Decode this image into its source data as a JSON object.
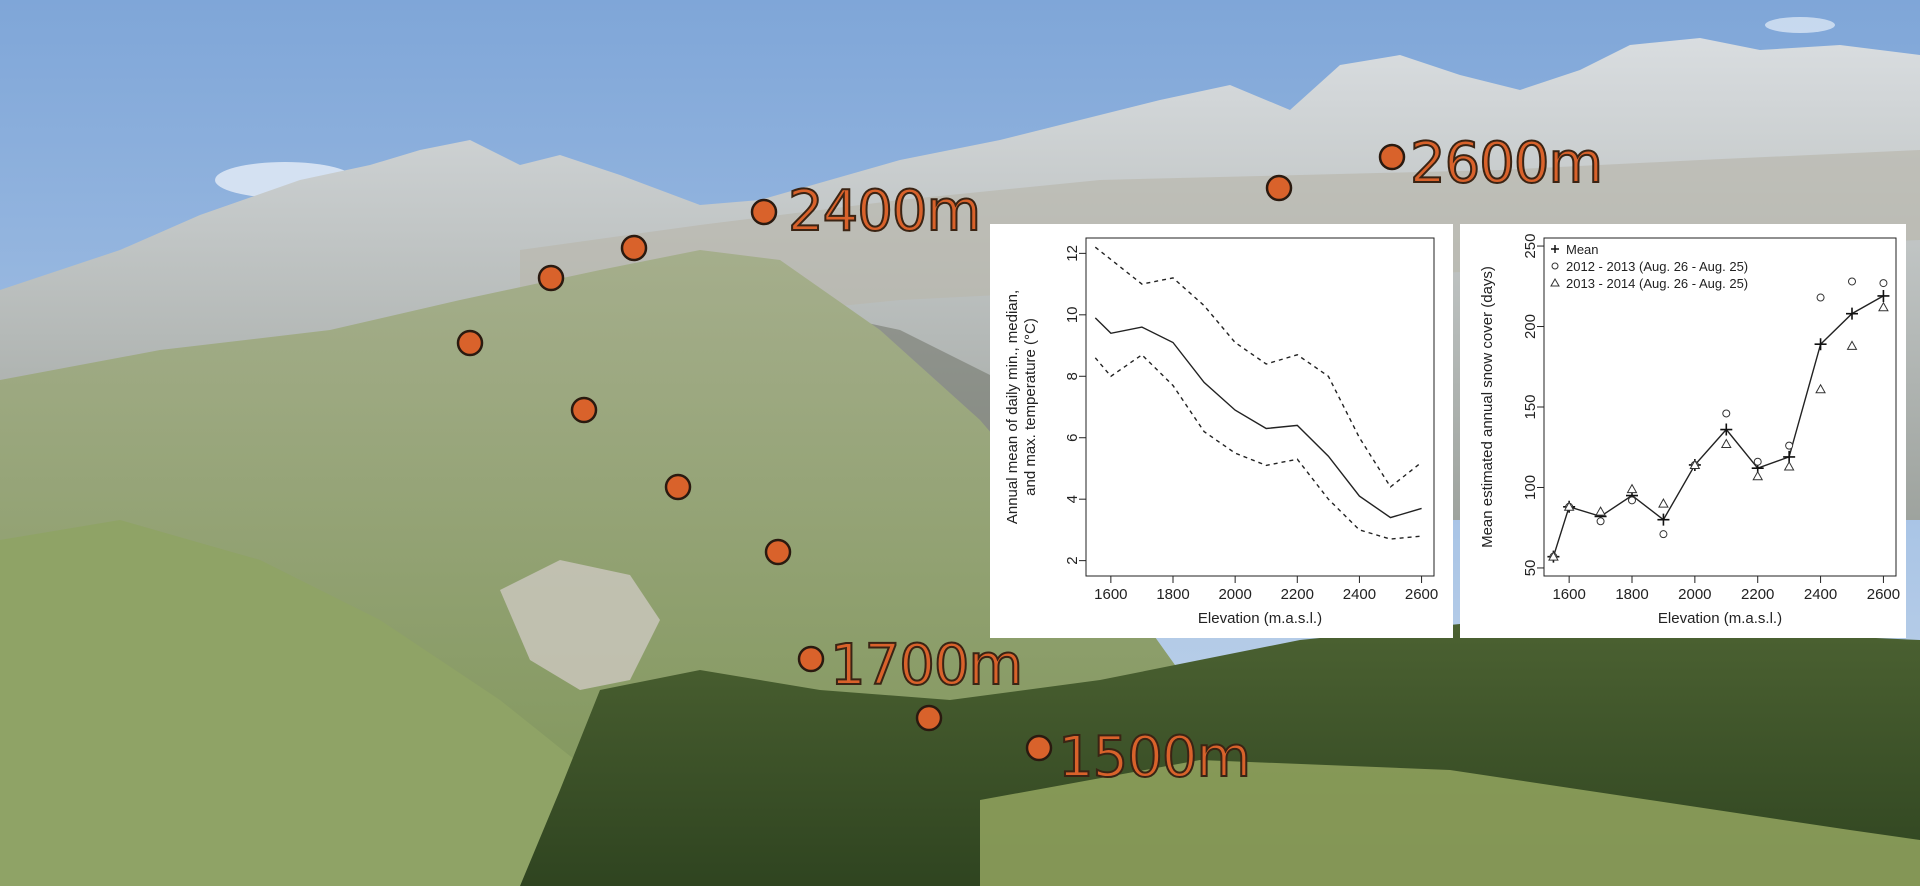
{
  "photo": {
    "description_free": true,
    "sky_color": "#a9c4e6",
    "marker_color": "#d9622b",
    "site_markers_count": 13,
    "labels": [
      "2400m",
      "2600m",
      "1700m",
      "1500m"
    ]
  },
  "chart_data": [
    {
      "type": "line",
      "title": "",
      "xlabel": "Elevation (m.a.s.l.)",
      "ylabel": "Annual mean of daily min., median, and max. temperature (°C)",
      "ylabel_lines": [
        "Annual mean of daily min., median,",
        "and max. temperature (°C)"
      ],
      "xlim": [
        1520,
        2640
      ],
      "ylim": [
        1.5,
        12.5
      ],
      "xticks": [
        1600,
        1800,
        2000,
        2200,
        2400,
        2600
      ],
      "yticks": [
        2,
        4,
        6,
        8,
        10,
        12
      ],
      "grid": false,
      "x": [
        1550,
        1600,
        1700,
        1800,
        1900,
        2000,
        2100,
        2200,
        2300,
        2400,
        2500,
        2600
      ],
      "series": [
        {
          "style": "dashed",
          "values": [
            12.2,
            11.8,
            11.0,
            11.2,
            10.3,
            9.1,
            8.4,
            8.7,
            8.0,
            6.0,
            4.4,
            5.2
          ]
        },
        {
          "style": "solid",
          "values": [
            9.9,
            9.4,
            9.6,
            9.1,
            7.8,
            6.9,
            6.3,
            6.4,
            5.4,
            4.1,
            3.4,
            3.7
          ]
        },
        {
          "style": "dashed",
          "values": [
            8.6,
            8.0,
            8.7,
            7.7,
            6.2,
            5.5,
            5.1,
            5.3,
            4.0,
            3.0,
            2.7,
            2.8
          ]
        }
      ]
    },
    {
      "type": "line",
      "title": "",
      "xlabel": "Elevation (m.a.s.l.)",
      "ylabel": "Mean estimated annual snow cover (days)",
      "xlim": [
        1520,
        2640
      ],
      "ylim": [
        45,
        255
      ],
      "xticks": [
        1600,
        1800,
        2000,
        2200,
        2400,
        2600
      ],
      "yticks": [
        50,
        100,
        150,
        200,
        250
      ],
      "grid": false,
      "legend_position": "top-left",
      "x": [
        1550,
        1600,
        1700,
        1800,
        1900,
        2000,
        2100,
        2200,
        2300,
        2400,
        2500,
        2600
      ],
      "series": [
        {
          "name": "Mean",
          "marker": "+",
          "line": true,
          "values": [
            57,
            88,
            82,
            95,
            80,
            114,
            136,
            112,
            119,
            189,
            208,
            219
          ]
        },
        {
          "name": "2012 - 2013 (Aug. 26 - Aug. 25)",
          "marker": "circle",
          "line": false,
          "values": [
            57,
            88,
            79,
            92,
            71,
            114,
            146,
            116,
            126,
            218,
            228,
            227
          ]
        },
        {
          "name": "2013 - 2014 (Aug. 26 - Aug. 25)",
          "marker": "triangle",
          "line": false,
          "values": [
            57,
            88,
            85,
            99,
            90,
            114,
            127,
            107,
            113,
            161,
            188,
            212
          ]
        }
      ]
    }
  ]
}
